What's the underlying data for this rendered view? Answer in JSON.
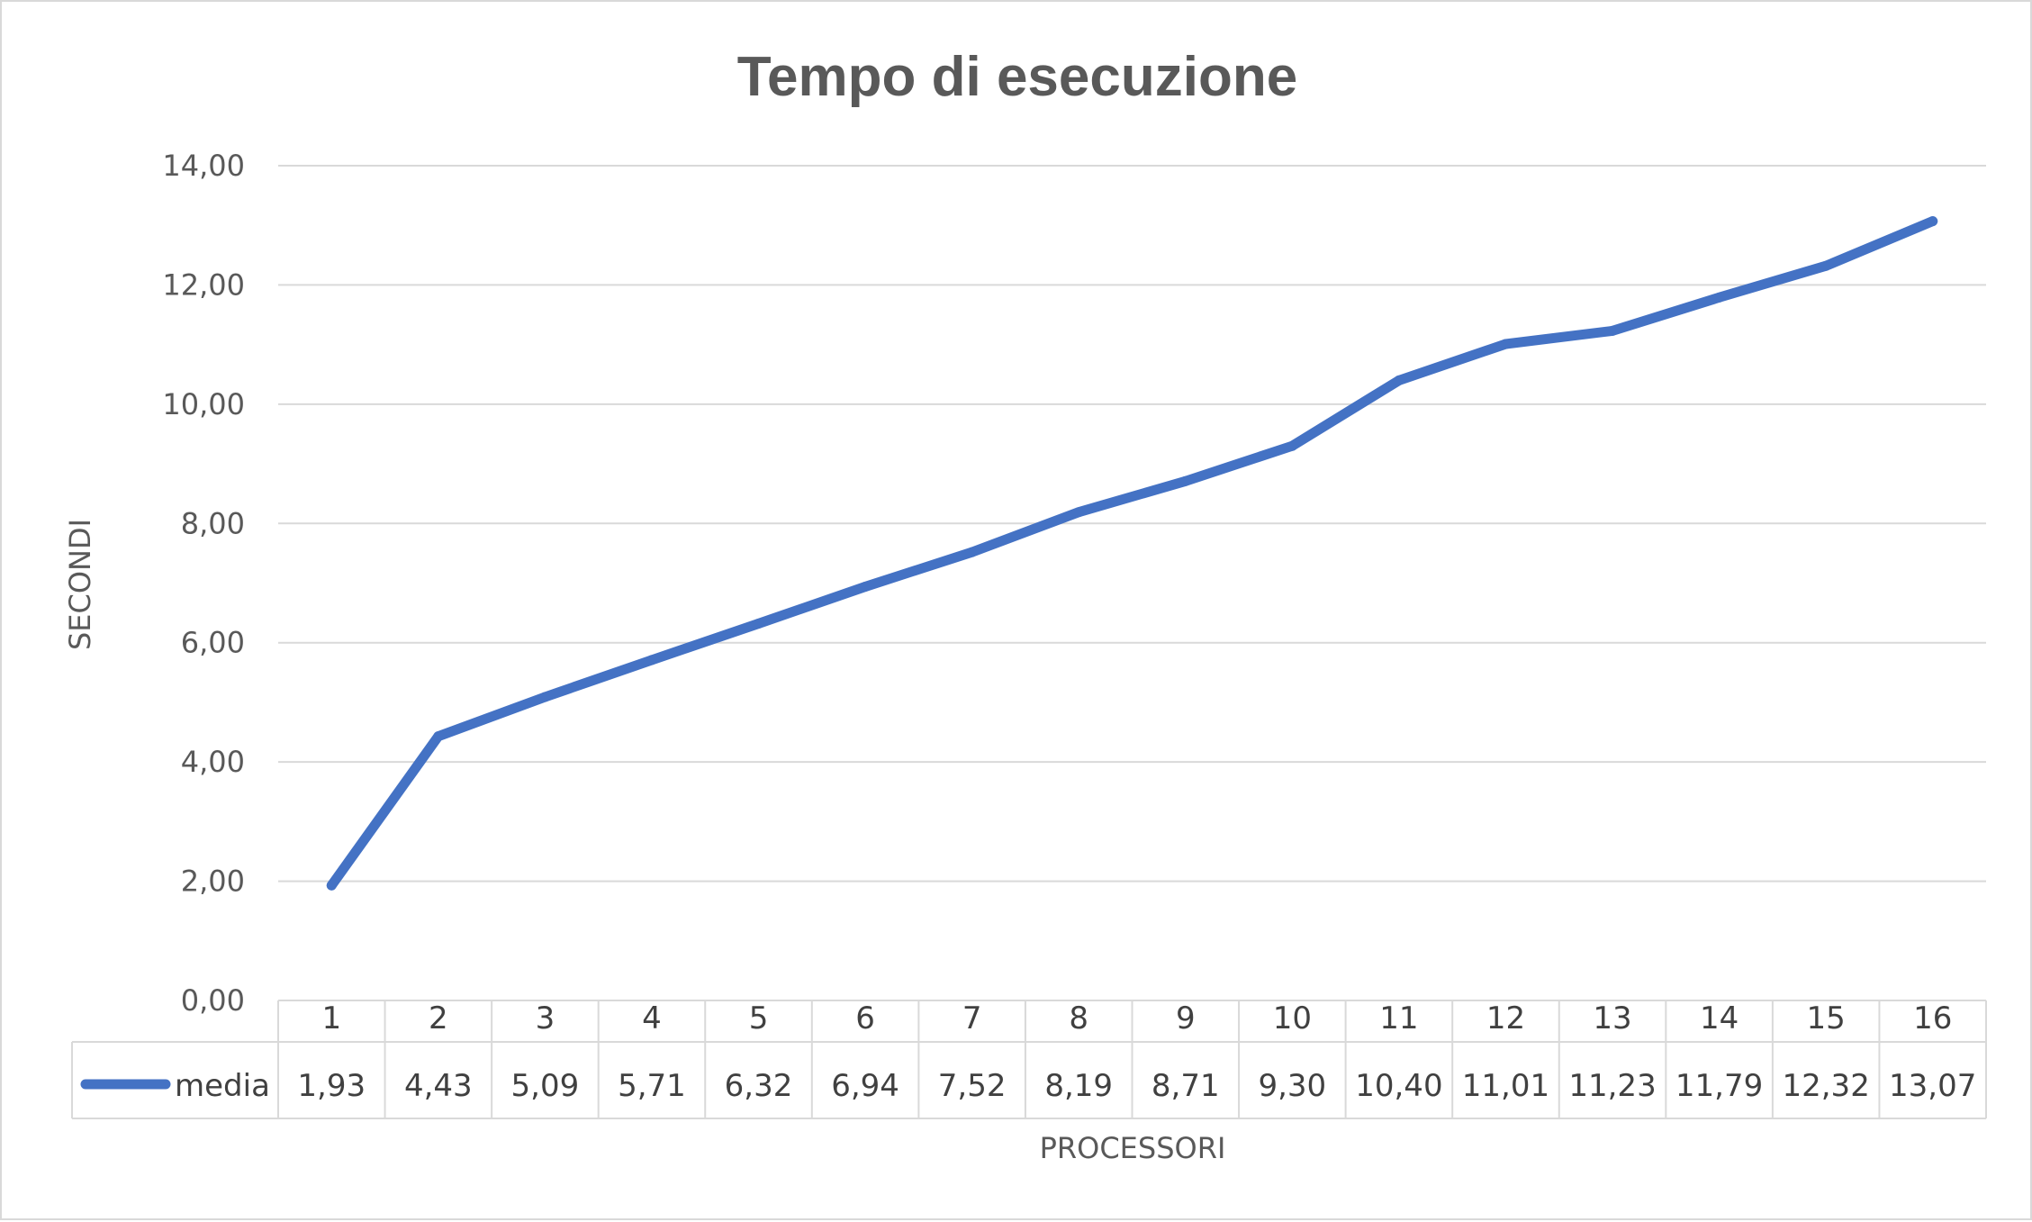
{
  "chart_data": {
    "type": "line",
    "title": "Tempo di esecuzione",
    "xlabel": "PROCESSORI",
    "ylabel": "SECONDI",
    "categories": [
      "1",
      "2",
      "3",
      "4",
      "5",
      "6",
      "7",
      "8",
      "9",
      "10",
      "11",
      "12",
      "13",
      "14",
      "15",
      "16"
    ],
    "series": [
      {
        "name": "media",
        "color": "#4472c4",
        "values": [
          1.93,
          4.43,
          5.09,
          5.71,
          6.32,
          6.94,
          7.52,
          8.19,
          8.71,
          9.3,
          10.4,
          11.01,
          11.23,
          11.79,
          12.32,
          13.07
        ],
        "labels": [
          "1,93",
          "4,43",
          "5,09",
          "5,71",
          "6,32",
          "6,94",
          "7,52",
          "8,19",
          "8,71",
          "9,30",
          "10,40",
          "11,01",
          "11,23",
          "11,79",
          "12,32",
          "13,07"
        ]
      }
    ],
    "ylim": [
      0,
      14
    ],
    "yticks": [
      0,
      2,
      4,
      6,
      8,
      10,
      12,
      14
    ],
    "ytick_labels": [
      "0,00",
      "2,00",
      "4,00",
      "6,00",
      "8,00",
      "10,00",
      "12,00",
      "14,00"
    ],
    "grid": true,
    "legend": "data-table"
  }
}
